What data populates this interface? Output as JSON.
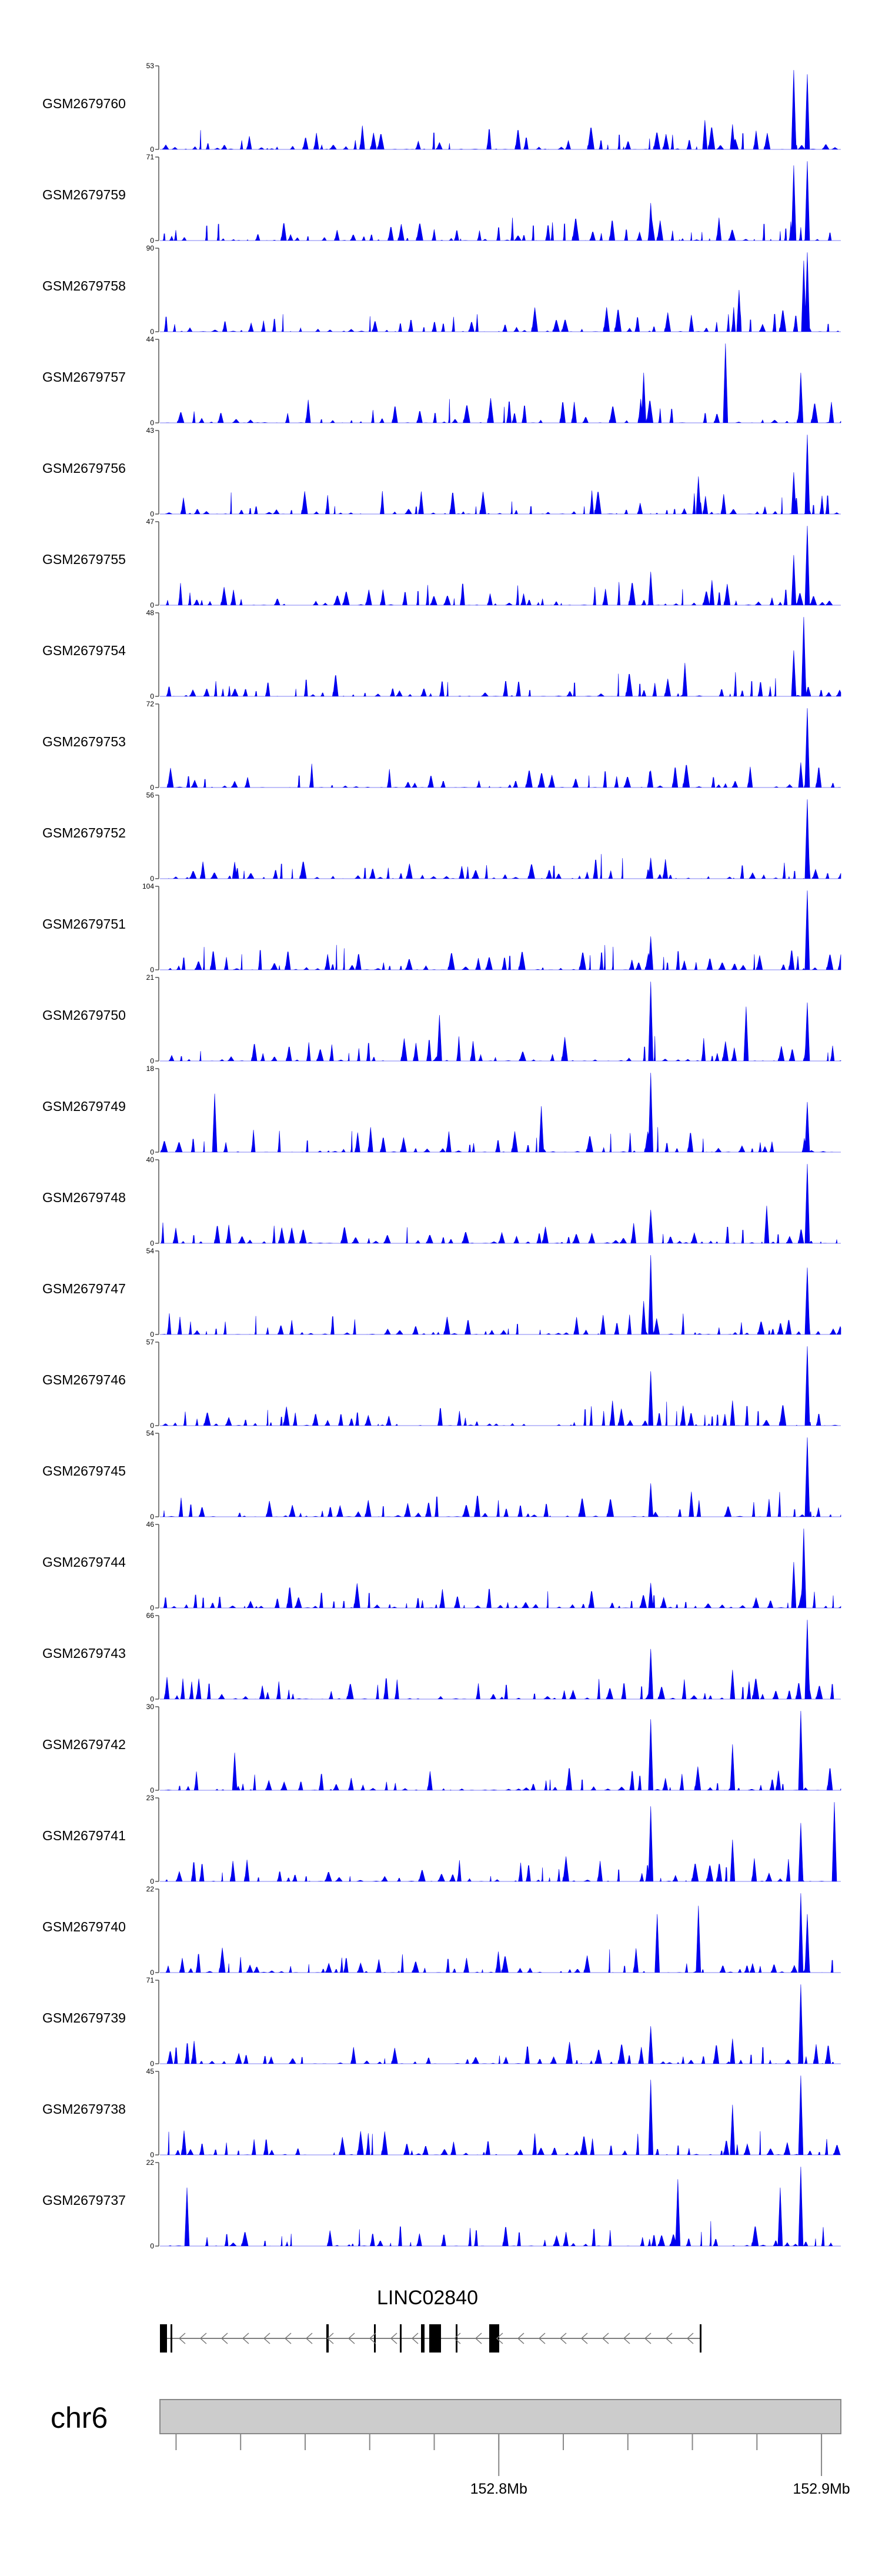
{
  "chart_data": {
    "type": "area",
    "chromosome": "chr6",
    "gene": {
      "name": "LINC02840",
      "strand": "-"
    },
    "x_axis": {
      "tick_labels": [
        {
          "value": 152.8,
          "label": "152.8Mb"
        },
        {
          "value": 152.9,
          "label": "152.9Mb"
        }
      ],
      "minor_ticks": [
        152.7,
        152.72,
        152.74,
        152.76,
        152.78,
        152.8,
        152.82,
        152.84,
        152.86,
        152.88,
        152.9
      ],
      "xlim": [
        152.695,
        152.906
      ]
    },
    "track_fill_color": "#0000ee",
    "tracks": [
      {
        "name": "GSM2679760",
        "ymax": 53,
        "ymin": 0,
        "peaks": [
          [
            0.8,
            0.35
          ],
          [
            0.93,
            0.95
          ],
          [
            0.95,
            0.9
          ],
          [
            0.84,
            0.3
          ]
        ]
      },
      {
        "name": "GSM2679759",
        "ymax": 71,
        "ymin": 0,
        "peaks": [
          [
            0.72,
            0.45
          ],
          [
            0.93,
            0.9
          ],
          [
            0.95,
            0.95
          ]
        ]
      },
      {
        "name": "GSM2679758",
        "ymax": 90,
        "ymin": 0,
        "peaks": [
          [
            0.85,
            0.5
          ],
          [
            0.945,
            0.85
          ],
          [
            0.95,
            0.95
          ],
          [
            0.78,
            0.2
          ]
        ]
      },
      {
        "name": "GSM2679757",
        "ymax": 44,
        "ymin": 0,
        "peaks": [
          [
            0.71,
            0.6
          ],
          [
            0.83,
            0.95
          ],
          [
            0.94,
            0.6
          ],
          [
            0.985,
            0.25
          ]
        ]
      },
      {
        "name": "GSM2679756",
        "ymax": 43,
        "ymin": 0,
        "peaks": [
          [
            0.79,
            0.45
          ],
          [
            0.95,
            0.95
          ],
          [
            0.93,
            0.5
          ]
        ]
      },
      {
        "name": "GSM2679755",
        "ymax": 47,
        "ymin": 0,
        "peaks": [
          [
            0.72,
            0.4
          ],
          [
            0.95,
            0.95
          ],
          [
            0.93,
            0.6
          ],
          [
            0.81,
            0.3
          ]
        ]
      },
      {
        "name": "GSM2679754",
        "ymax": 48,
        "ymin": 0,
        "peaks": [
          [
            0.77,
            0.4
          ],
          [
            0.945,
            0.95
          ],
          [
            0.93,
            0.55
          ]
        ]
      },
      {
        "name": "GSM2679753",
        "ymax": 72,
        "ymin": 0,
        "peaks": [
          [
            0.72,
            0.2
          ],
          [
            0.95,
            0.95
          ],
          [
            0.94,
            0.3
          ]
        ]
      },
      {
        "name": "GSM2679752",
        "ymax": 56,
        "ymin": 0,
        "peaks": [
          [
            0.72,
            0.25
          ],
          [
            0.95,
            0.95
          ],
          [
            0.11,
            0.2
          ]
        ]
      },
      {
        "name": "GSM2679751",
        "ymax": 104,
        "ymin": 0,
        "peaks": [
          [
            0.72,
            0.4
          ],
          [
            0.95,
            0.95
          ]
        ]
      },
      {
        "name": "GSM2679750",
        "ymax": 21,
        "ymin": 0,
        "peaks": [
          [
            0.72,
            0.95
          ],
          [
            0.86,
            0.65
          ],
          [
            0.41,
            0.55
          ],
          [
            0.95,
            0.7
          ]
        ]
      },
      {
        "name": "GSM2679749",
        "ymax": 18,
        "ymin": 0,
        "peaks": [
          [
            0.72,
            0.95
          ],
          [
            0.08,
            0.7
          ],
          [
            0.95,
            0.6
          ],
          [
            0.56,
            0.55
          ]
        ]
      },
      {
        "name": "GSM2679748",
        "ymax": 40,
        "ymin": 0,
        "peaks": [
          [
            0.95,
            0.95
          ],
          [
            0.89,
            0.45
          ],
          [
            0.72,
            0.4
          ]
        ]
      },
      {
        "name": "GSM2679747",
        "ymax": 54,
        "ymin": 0,
        "peaks": [
          [
            0.72,
            0.95
          ],
          [
            0.95,
            0.8
          ],
          [
            0.71,
            0.4
          ]
        ]
      },
      {
        "name": "GSM2679746",
        "ymax": 57,
        "ymin": 0,
        "peaks": [
          [
            0.72,
            0.65
          ],
          [
            0.95,
            0.95
          ],
          [
            0.84,
            0.3
          ]
        ]
      },
      {
        "name": "GSM2679745",
        "ymax": 54,
        "ymin": 0,
        "peaks": [
          [
            0.95,
            0.95
          ],
          [
            0.72,
            0.4
          ],
          [
            0.78,
            0.3
          ]
        ]
      },
      {
        "name": "GSM2679744",
        "ymax": 46,
        "ymin": 0,
        "peaks": [
          [
            0.945,
            0.95
          ],
          [
            0.93,
            0.55
          ],
          [
            0.72,
            0.3
          ]
        ]
      },
      {
        "name": "GSM2679743",
        "ymax": 66,
        "ymin": 0,
        "peaks": [
          [
            0.72,
            0.6
          ],
          [
            0.95,
            0.95
          ],
          [
            0.84,
            0.35
          ]
        ]
      },
      {
        "name": "GSM2679742",
        "ymax": 30,
        "ymin": 0,
        "peaks": [
          [
            0.72,
            0.85
          ],
          [
            0.94,
            0.95
          ],
          [
            0.84,
            0.55
          ],
          [
            0.11,
            0.45
          ]
        ]
      },
      {
        "name": "GSM2679741",
        "ymax": 23,
        "ymin": 0,
        "peaks": [
          [
            0.72,
            0.9
          ],
          [
            0.99,
            0.95
          ],
          [
            0.94,
            0.7
          ],
          [
            0.84,
            0.5
          ]
        ]
      },
      {
        "name": "GSM2679740",
        "ymax": 22,
        "ymin": 0,
        "peaks": [
          [
            0.94,
            0.95
          ],
          [
            0.79,
            0.8
          ],
          [
            0.73,
            0.7
          ],
          [
            0.95,
            0.7
          ]
        ]
      },
      {
        "name": "GSM2679739",
        "ymax": 71,
        "ymin": 0,
        "peaks": [
          [
            0.72,
            0.45
          ],
          [
            0.94,
            0.95
          ],
          [
            0.84,
            0.3
          ]
        ]
      },
      {
        "name": "GSM2679738",
        "ymax": 45,
        "ymin": 0,
        "peaks": [
          [
            0.72,
            0.9
          ],
          [
            0.94,
            0.95
          ],
          [
            0.84,
            0.6
          ]
        ]
      },
      {
        "name": "GSM2679737",
        "ymax": 22,
        "ymin": 0,
        "peaks": [
          [
            0.94,
            0.95
          ],
          [
            0.76,
            0.8
          ],
          [
            0.91,
            0.7
          ],
          [
            0.04,
            0.7
          ]
        ]
      }
    ]
  }
}
